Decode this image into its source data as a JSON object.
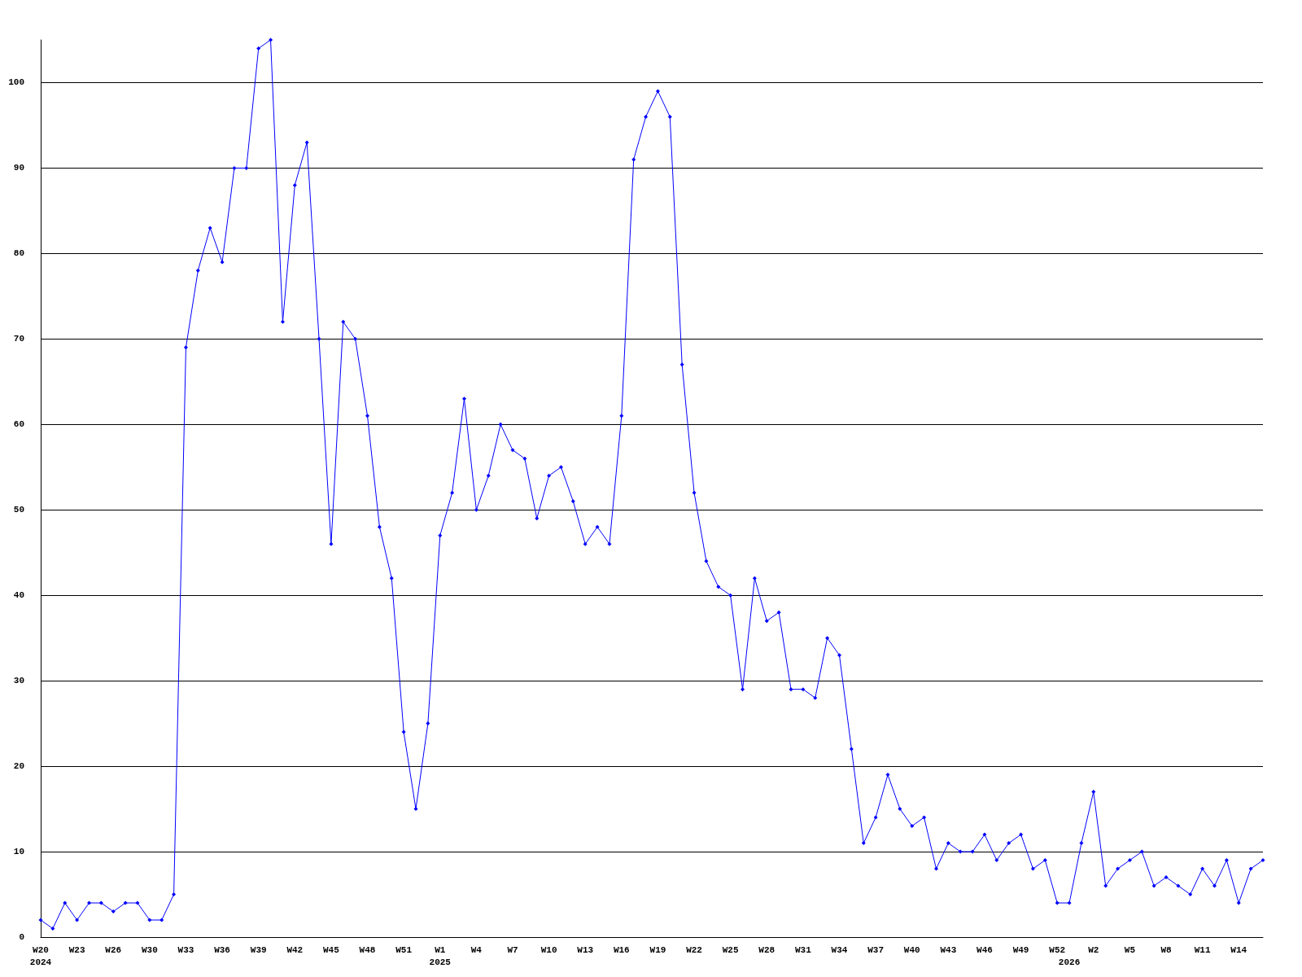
{
  "chart_data": {
    "type": "line",
    "categories": [
      "W20\n2024",
      null,
      null,
      "W23",
      null,
      null,
      "W26",
      null,
      null,
      "W30",
      null,
      null,
      "W33",
      null,
      null,
      "W36",
      null,
      null,
      "W39",
      null,
      null,
      "W42",
      null,
      null,
      "W45",
      null,
      null,
      "W48",
      null,
      null,
      "W51",
      null,
      null,
      "W1\n2025",
      null,
      null,
      "W4",
      null,
      null,
      "W7",
      null,
      null,
      "W10",
      null,
      null,
      "W13",
      null,
      null,
      "W16",
      null,
      null,
      "W19",
      null,
      null,
      "W22",
      null,
      null,
      "W25",
      null,
      null,
      "W28",
      null,
      null,
      "W31",
      null,
      null,
      "W34",
      null,
      null,
      "W37",
      null,
      null,
      "W40",
      null,
      null,
      "W43",
      null,
      null,
      "W46",
      null,
      null,
      "W49",
      null,
      null,
      "W52",
      "\n2026",
      null,
      "W2",
      null,
      null,
      "W5",
      null,
      null,
      "W8",
      null,
      null,
      "W11",
      null,
      null,
      "W14",
      null,
      null
    ],
    "series": [
      {
        "color": "#0000ff",
        "values": [
          2,
          1,
          4,
          2,
          4,
          4,
          3,
          4,
          4,
          2,
          2,
          5,
          69,
          78,
          83,
          79,
          90,
          90,
          104,
          105,
          72,
          88,
          93,
          70,
          46,
          72,
          70,
          61,
          48,
          42,
          24,
          15,
          25,
          47,
          52,
          63,
          50,
          54,
          60,
          57,
          56,
          49,
          54,
          55,
          51,
          46,
          48,
          46,
          61,
          91,
          96,
          99,
          96,
          67,
          52,
          44,
          41,
          40,
          29,
          42,
          37,
          38,
          29,
          29,
          28,
          35,
          33,
          22,
          11,
          14,
          19,
          15,
          13,
          14,
          8,
          11,
          10,
          10,
          12,
          9,
          11,
          12,
          8,
          9,
          4,
          4,
          11,
          17,
          6,
          8,
          9,
          10,
          6,
          7,
          6,
          5,
          8,
          6,
          9,
          4,
          8,
          9
        ]
      }
    ],
    "ylim": [
      0,
      105
    ],
    "yticks": [
      0,
      10,
      20,
      30,
      40,
      50,
      60,
      70,
      80,
      90,
      100
    ],
    "grid": "y",
    "marker": "diamond",
    "line_style": "solid"
  }
}
